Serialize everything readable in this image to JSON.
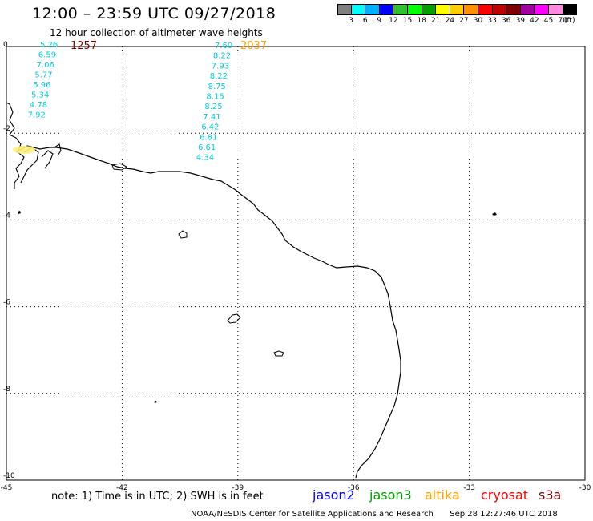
{
  "header": {
    "title": "12:00 – 23:59 UTC 09/27/2018",
    "subtitle": "12 hour collection of altimeter wave heights"
  },
  "color_scale": {
    "colors": [
      "#808080",
      "#00ffff",
      "#00b0ff",
      "#0000ff",
      "#30c030",
      "#00ff00",
      "#00a000",
      "#ffff00",
      "#ffd000",
      "#ff9000",
      "#ff0000",
      "#c00000",
      "#800000",
      "#a000a0",
      "#ff00ff",
      "#ff88e0",
      "#000000"
    ],
    "labels": [
      "3",
      "6",
      "9",
      "12",
      "15",
      "18",
      "21",
      "24",
      "27",
      "30",
      "33",
      "36",
      "39",
      "42",
      "45",
      "70",
      "(ft)"
    ]
  },
  "axes": {
    "lon_ticks": [
      "-45",
      "-42",
      "-39",
      "-36",
      "-33",
      "-30"
    ],
    "lat_ticks": [
      "0",
      "-2",
      "-4",
      "-6",
      "-8",
      "-10"
    ]
  },
  "track_left": {
    "time": "1257",
    "time_color": "#800000",
    "values": [
      "5.26",
      "6.59",
      "7.06",
      "5.77",
      "5.96",
      "5.34",
      "4.78",
      "7.92"
    ]
  },
  "track_right": {
    "time": "2037",
    "time_color": "#ffa000",
    "values": [
      "7.60",
      "8.22",
      "7.93",
      "8.22",
      "8.75",
      "8.15",
      "8.25",
      "7.41",
      "6.42",
      "6.81",
      "6.61",
      "4.34"
    ]
  },
  "footer": {
    "note": "note:  1) Time is in UTC;  2) SWH is in feet",
    "satellites": [
      {
        "name": "jason2",
        "color": "#0000ff"
      },
      {
        "name": "jason3",
        "color": "#00a000"
      },
      {
        "name": "altika",
        "color": "#ffa000"
      },
      {
        "name": "cryosat",
        "color": "#ff0000"
      },
      {
        "name": "s3a",
        "color": "#800000"
      }
    ],
    "credit": "NOAA/NESDIS Center for Satellite Applications and Research",
    "timestamp": "Sep 28 12:27:46 UTC 2018"
  }
}
